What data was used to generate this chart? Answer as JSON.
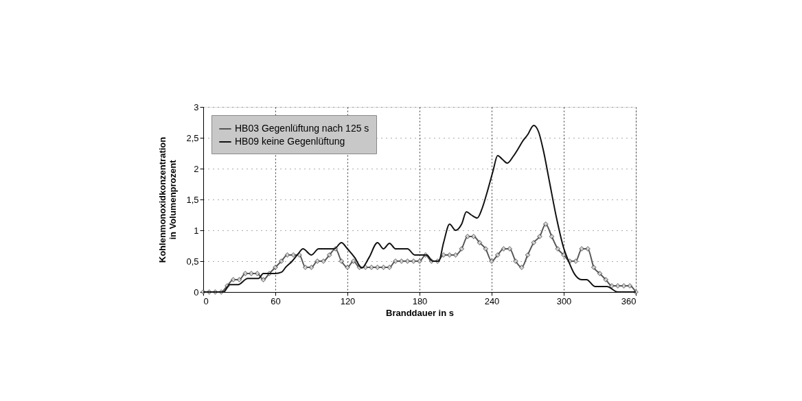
{
  "chart_data": {
    "type": "line",
    "xlabel": "Branddauer in s",
    "ylabel": "Kohlenmonoxidkonzentration\nin Volumenprozent",
    "xlim": [
      0,
      360
    ],
    "xticks": [
      0,
      60,
      120,
      180,
      240,
      300,
      360
    ],
    "ylim": [
      0,
      3
    ],
    "yticks": [
      0,
      {
        "value": 0.5,
        "label": "0,5"
      },
      1,
      {
        "value": 1.5,
        "label": "1,5"
      },
      2,
      {
        "value": 2.5,
        "label": "2,5"
      },
      3
    ],
    "grid": true,
    "legend": "top left",
    "line_style": "solid",
    "series": [
      {
        "name": "HB03 Gegenlüftung nach 125 s",
        "color": "#555555",
        "marker": "diamond",
        "x": [
          0,
          5,
          10,
          15,
          20,
          25,
          30,
          35,
          40,
          45,
          50,
          55,
          60,
          65,
          70,
          75,
          80,
          85,
          90,
          95,
          100,
          105,
          110,
          115,
          120,
          125,
          130,
          135,
          140,
          145,
          150,
          155,
          160,
          165,
          170,
          175,
          180,
          185,
          190,
          195,
          200,
          205,
          210,
          215,
          220,
          225,
          230,
          235,
          240,
          245,
          250,
          255,
          260,
          265,
          270,
          275,
          280,
          285,
          290,
          295,
          300,
          305,
          310,
          315,
          320,
          325,
          330,
          335,
          340,
          345,
          350,
          355,
          360
        ],
        "values": [
          0,
          0,
          0,
          0,
          0.1,
          0.2,
          0.2,
          0.3,
          0.3,
          0.3,
          0.2,
          0.3,
          0.4,
          0.5,
          0.6,
          0.6,
          0.6,
          0.4,
          0.4,
          0.5,
          0.5,
          0.6,
          0.7,
          0.5,
          0.4,
          0.5,
          0.4,
          0.4,
          0.4,
          0.4,
          0.4,
          0.4,
          0.5,
          0.5,
          0.5,
          0.5,
          0.5,
          0.6,
          0.5,
          0.5,
          0.6,
          0.6,
          0.6,
          0.7,
          0.9,
          0.9,
          0.8,
          0.7,
          0.5,
          0.6,
          0.7,
          0.7,
          0.5,
          0.4,
          0.6,
          0.8,
          0.9,
          1.1,
          0.9,
          0.7,
          0.6,
          0.5,
          0.5,
          0.7,
          0.7,
          0.4,
          0.3,
          0.2,
          0.1,
          0.1,
          0.1,
          0.1,
          0
        ]
      },
      {
        "name": "HB09 keine Gegenlüftung",
        "color": "#111111",
        "marker": "none",
        "x": [
          0,
          17,
          22,
          29,
          37,
          46,
          50,
          56,
          60,
          65,
          69,
          74,
          79,
          83,
          90,
          96,
          109,
          115,
          120,
          126,
          132,
          138,
          145,
          150,
          155,
          160,
          170,
          176,
          186,
          191,
          196,
          200,
          205,
          210,
          215,
          219,
          223,
          228,
          232,
          236,
          241,
          245,
          249,
          253,
          258,
          262,
          266,
          270,
          275,
          279,
          283,
          288,
          294,
          300,
          304,
          309,
          315,
          319,
          326,
          336,
          345,
          360
        ],
        "values": [
          0,
          0,
          0.12,
          0.12,
          0.22,
          0.22,
          0.3,
          0.3,
          0.3,
          0.32,
          0.41,
          0.5,
          0.62,
          0.7,
          0.6,
          0.7,
          0.7,
          0.8,
          0.7,
          0.56,
          0.39,
          0.56,
          0.8,
          0.7,
          0.79,
          0.7,
          0.7,
          0.6,
          0.6,
          0.5,
          0.5,
          0.8,
          1.1,
          1.0,
          1.1,
          1.3,
          1.25,
          1.2,
          1.35,
          1.6,
          1.95,
          2.21,
          2.15,
          2.09,
          2.2,
          2.32,
          2.45,
          2.55,
          2.7,
          2.6,
          2.3,
          1.8,
          1.2,
          0.71,
          0.5,
          0.29,
          0.2,
          0.2,
          0.09,
          0.09,
          0,
          0
        ]
      }
    ]
  }
}
